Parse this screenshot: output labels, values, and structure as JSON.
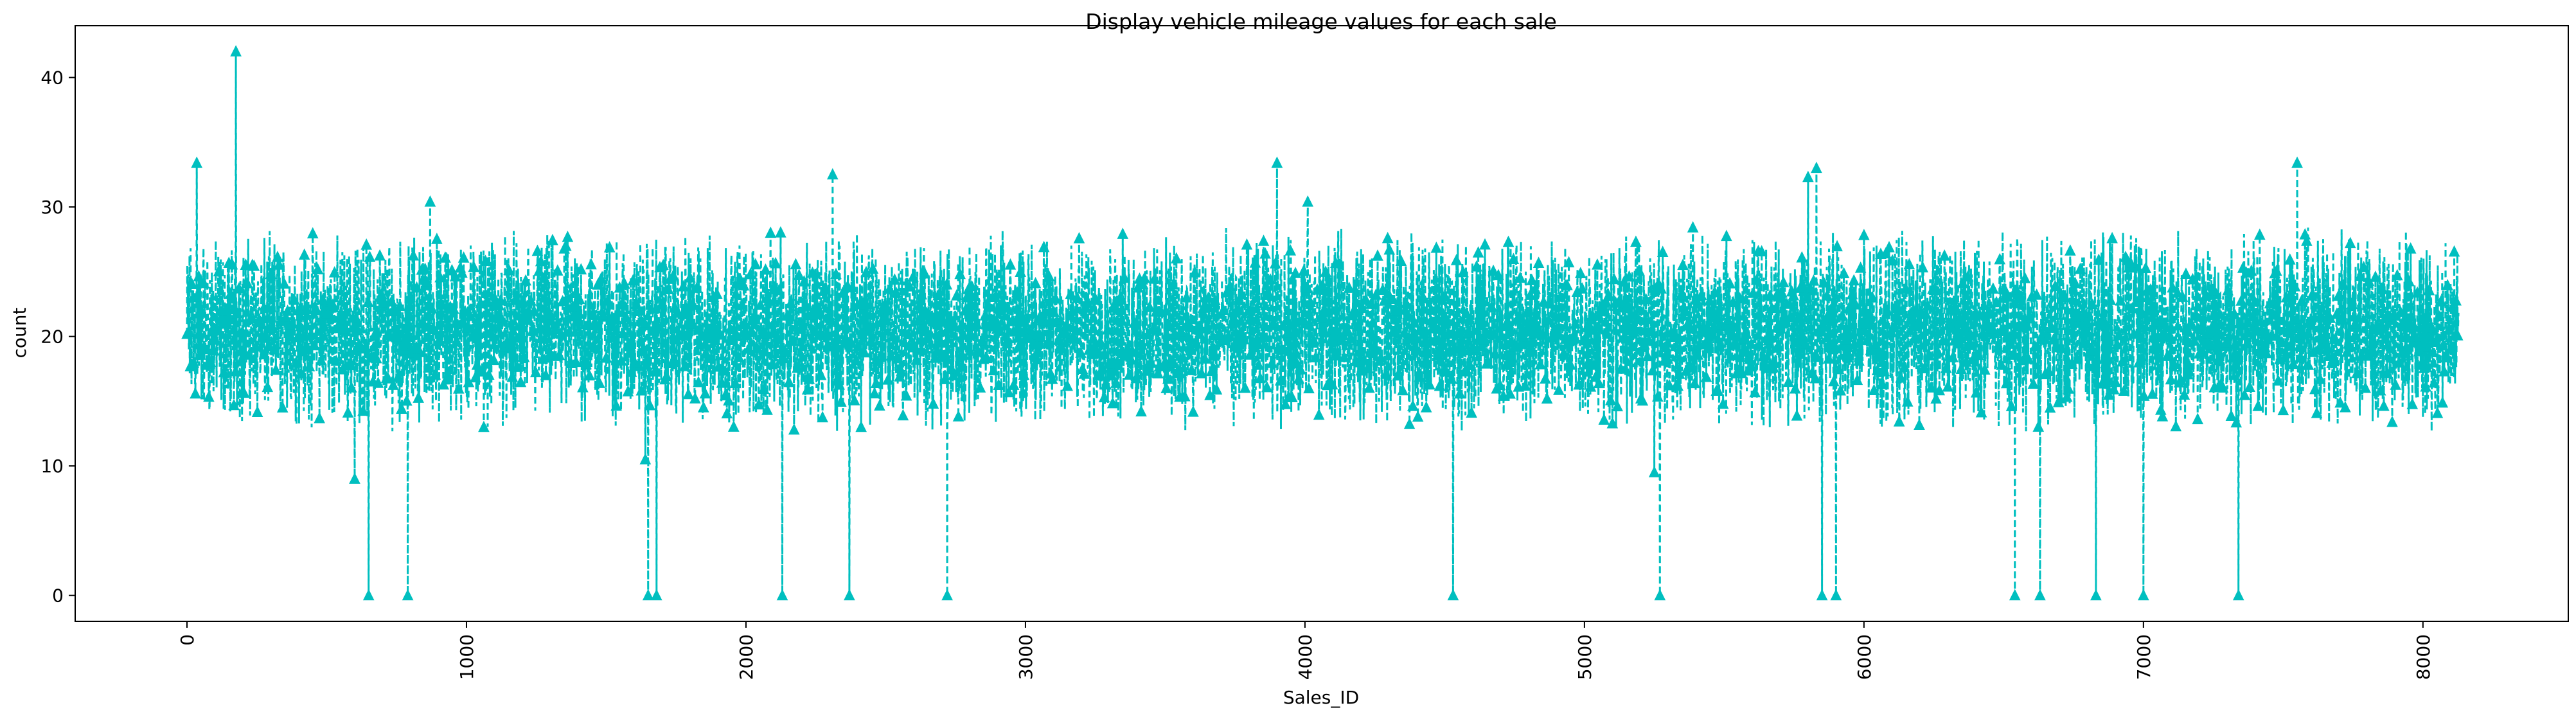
{
  "chart_data": {
    "type": "line",
    "title": "Display vehicle mileage values for each sale",
    "xlabel": "Sales_ID",
    "ylabel": "count",
    "xlim": [
      -400,
      8520
    ],
    "ylim": [
      -2,
      44
    ],
    "xticks": [
      0,
      1000,
      2000,
      3000,
      4000,
      5000,
      6000,
      7000,
      8000
    ],
    "yticks": [
      0,
      10,
      20,
      30,
      40
    ],
    "xtick_rotation": 90,
    "grid": false,
    "legend": "none",
    "series": [
      {
        "color": "#00bfbf",
        "linestyle": "dashed",
        "marker": "triangle-up",
        "n_points": 8128,
        "x_start": 0,
        "x_end": 8127,
        "typical_range": [
          12.5,
          28.5
        ],
        "spikes": [
          {
            "x": 35,
            "y": 33.4
          },
          {
            "x": 175,
            "y": 42.0
          },
          {
            "x": 870,
            "y": 30.4
          },
          {
            "x": 2310,
            "y": 32.5
          },
          {
            "x": 3900,
            "y": 33.4
          },
          {
            "x": 4010,
            "y": 30.4
          },
          {
            "x": 5800,
            "y": 32.3
          },
          {
            "x": 5830,
            "y": 33.0
          },
          {
            "x": 7550,
            "y": 33.4
          }
        ],
        "zeros": [
          650,
          790,
          1650,
          1680,
          2130,
          2370,
          2720,
          4530,
          5270,
          5850,
          5900,
          6540,
          6630,
          6830,
          7000,
          7340
        ],
        "lows": [
          {
            "x": 600,
            "y": 9.0
          },
          {
            "x": 1640,
            "y": 10.5
          },
          {
            "x": 2130,
            "y": 9.0
          },
          {
            "x": 4530,
            "y": 10.0
          },
          {
            "x": 5250,
            "y": 9.5
          },
          {
            "x": 7000,
            "y": 9.5
          }
        ]
      }
    ]
  }
}
